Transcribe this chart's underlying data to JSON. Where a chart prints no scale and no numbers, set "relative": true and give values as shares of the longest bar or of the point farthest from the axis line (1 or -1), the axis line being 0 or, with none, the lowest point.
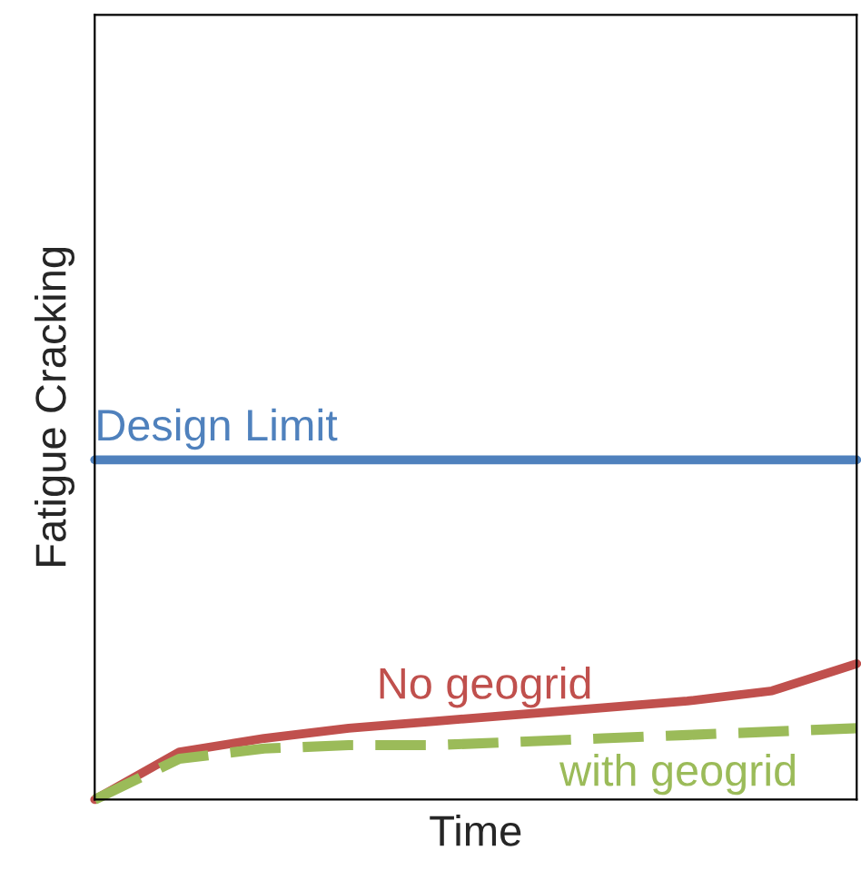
{
  "chart_data": {
    "type": "line",
    "relative": true,
    "xlabel": "Time",
    "ylabel": "Fatigue Cracking",
    "categories": [
      null,
      null,
      null,
      null,
      null,
      null,
      null,
      null,
      null,
      null
    ],
    "series": [
      {
        "name": "Design Limit",
        "color": "#4f81bd",
        "values": [
          1,
          1,
          1,
          1,
          1,
          1,
          1,
          1,
          1,
          1
        ]
      },
      {
        "name": "No geogrid",
        "color": "#c0504d",
        "values": [
          0,
          0.14,
          0.18,
          0.21,
          0.23,
          0.25,
          0.27,
          0.29,
          0.32,
          0.4
        ]
      },
      {
        "name": "with geogrid",
        "color": "#9bbb59",
        "line_style": "dashed",
        "values": [
          0,
          0.12,
          0.15,
          0.16,
          0.16,
          0.17,
          0.18,
          0.19,
          0.2,
          0.21
        ]
      }
    ],
    "marker": "none"
  }
}
